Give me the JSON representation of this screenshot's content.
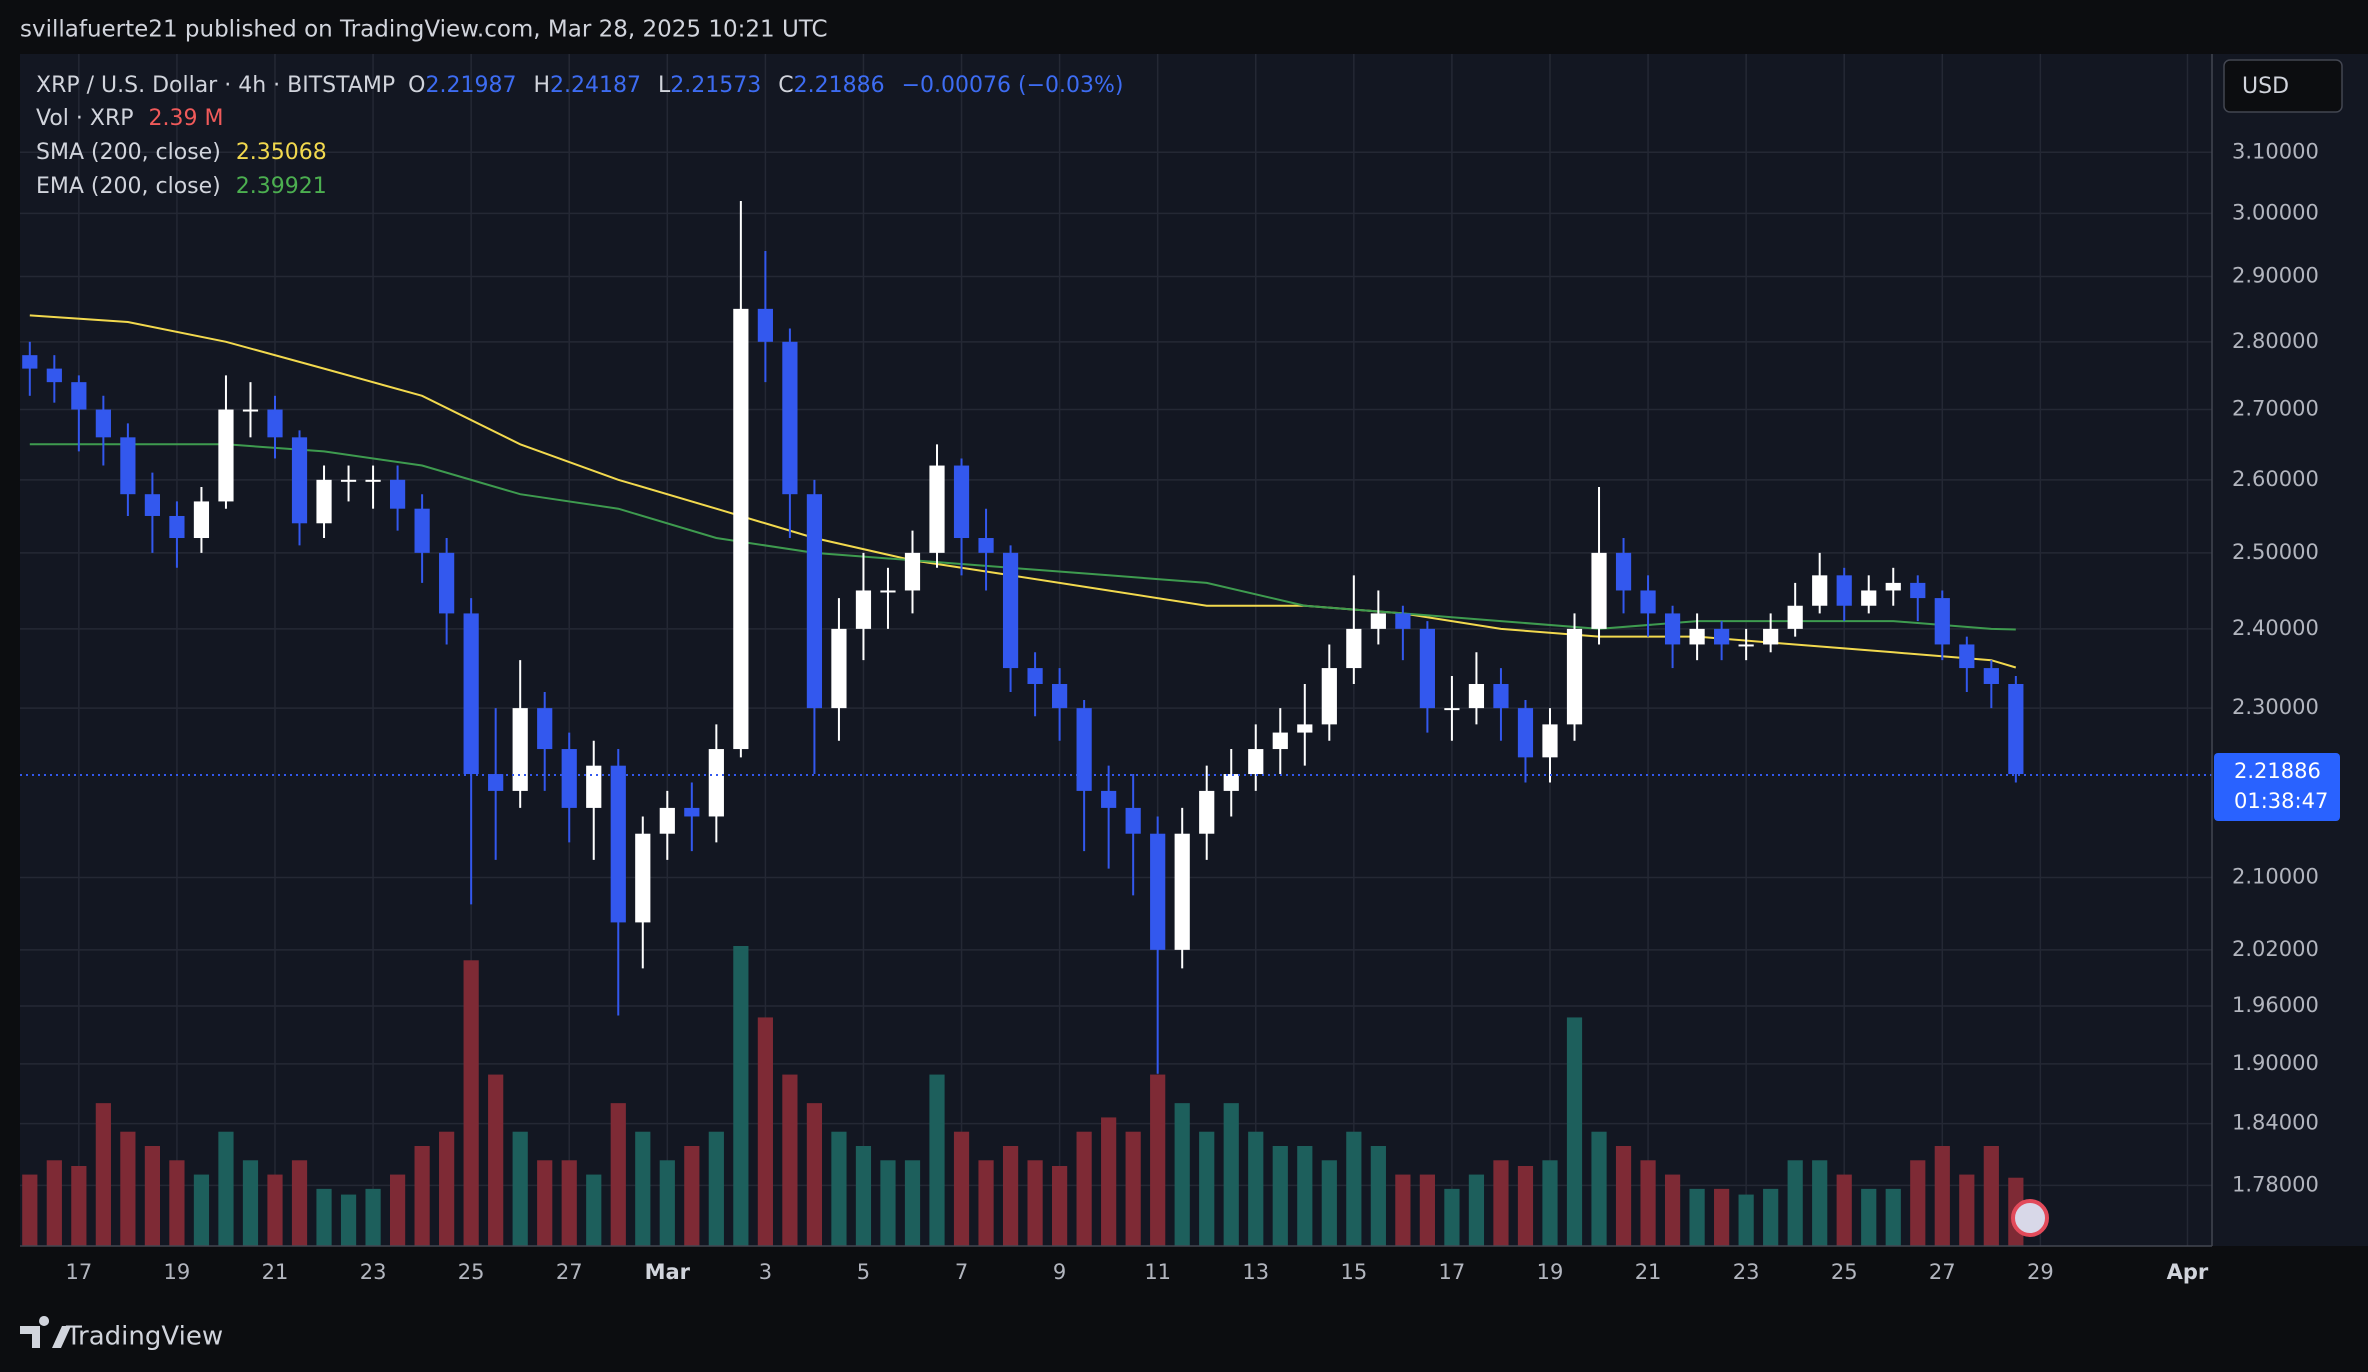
{
  "header": {
    "published": "svillafuerte21 published on TradingView.com, Mar 28, 2025 10:21 UTC",
    "logo": "TradingView"
  },
  "chart_data": {
    "type": "candlestick",
    "title": "XRP / U.S. Dollar · 4h · BITSTAMP",
    "legend": {
      "o_label": "O",
      "o": 2.21987,
      "h_label": "H",
      "h": 2.24187,
      "l_label": "L",
      "l": 2.21573,
      "c_label": "C",
      "c": 2.21886,
      "change": "−0.00076 (−0.03%)",
      "volume_label": "Vol · XRP",
      "volume": "2.39 M"
    },
    "currency": "USD",
    "countdown": "01:38:47",
    "price_line": 2.21886,
    "up_color": "#ffffff",
    "down_color": "#3358ee",
    "volume_up_color": "#1d5f5c",
    "volume_down_color": "#7e2a35",
    "log_scale": true,
    "grid": true,
    "xlim": [
      -1.2,
      43.5
    ],
    "ylim": [
      1.723,
      3.268
    ],
    "xticks": [
      {
        "value": 0,
        "label": "17"
      },
      {
        "value": 2,
        "label": "19"
      },
      {
        "value": 4,
        "label": "21"
      },
      {
        "value": 6,
        "label": "23"
      },
      {
        "value": 8,
        "label": "25"
      },
      {
        "value": 10,
        "label": "27"
      },
      {
        "value": 12,
        "label": "Mar"
      },
      {
        "value": 14,
        "label": "3"
      },
      {
        "value": 16,
        "label": "5"
      },
      {
        "value": 18,
        "label": "7"
      },
      {
        "value": 20,
        "label": "9"
      },
      {
        "value": 22,
        "label": "11"
      },
      {
        "value": 24,
        "label": "13"
      },
      {
        "value": 26,
        "label": "15"
      },
      {
        "value": 28,
        "label": "17"
      },
      {
        "value": 30,
        "label": "19"
      },
      {
        "value": 32,
        "label": "21"
      },
      {
        "value": 34,
        "label": "23"
      },
      {
        "value": 36,
        "label": "25"
      },
      {
        "value": 38,
        "label": "27"
      },
      {
        "value": 40,
        "label": "29"
      },
      {
        "value": 43,
        "label": "Apr"
      }
    ],
    "yticks": [
      {
        "value": 3.1,
        "label": "3.10000"
      },
      {
        "value": 3.0,
        "label": "3.00000"
      },
      {
        "value": 2.9,
        "label": "2.90000"
      },
      {
        "value": 2.8,
        "label": "2.80000"
      },
      {
        "value": 2.7,
        "label": "2.70000"
      },
      {
        "value": 2.6,
        "label": "2.60000"
      },
      {
        "value": 2.5,
        "label": "2.50000"
      },
      {
        "value": 2.4,
        "label": "2.40000"
      },
      {
        "value": 2.3,
        "label": "2.30000"
      },
      {
        "value": 2.1,
        "label": "2.10000"
      },
      {
        "value": 2.02,
        "label": "2.02000"
      },
      {
        "value": 1.96,
        "label": "1.96000"
      },
      {
        "value": 1.9,
        "label": "1.90000"
      },
      {
        "value": 1.84,
        "label": "1.84000"
      },
      {
        "value": 1.78,
        "label": "1.78000"
      }
    ],
    "x": [
      -1,
      -0.5,
      0,
      0.5,
      1,
      1.5,
      2,
      2.5,
      3,
      3.5,
      4,
      4.5,
      5,
      5.5,
      6,
      6.5,
      7,
      7.5,
      8,
      8.5,
      9,
      9.5,
      10,
      10.5,
      11,
      11.5,
      12,
      12.5,
      13,
      13.5,
      14,
      14.5,
      15,
      15.5,
      16,
      16.5,
      17,
      17.5,
      18,
      18.5,
      19,
      19.5,
      20,
      20.5,
      21,
      21.5,
      22,
      22.5,
      23,
      23.5,
      24,
      24.5,
      25,
      25.5,
      26,
      26.5,
      27,
      27.5,
      28,
      28.5,
      29,
      29.5,
      30,
      30.5,
      31,
      31.5,
      32,
      32.5,
      33,
      33.5,
      34,
      34.5,
      35,
      35.5,
      36,
      36.5,
      37,
      37.5,
      38,
      38.5,
      39,
      39.5
    ],
    "open": [
      2.78,
      2.76,
      2.74,
      2.7,
      2.66,
      2.58,
      2.55,
      2.52,
      2.57,
      2.7,
      2.7,
      2.66,
      2.54,
      2.6,
      2.6,
      2.6,
      2.56,
      2.5,
      2.42,
      2.22,
      2.2,
      2.3,
      2.25,
      2.18,
      2.23,
      2.05,
      2.15,
      2.18,
      2.17,
      2.25,
      2.85,
      2.8,
      2.58,
      2.3,
      2.4,
      2.45,
      2.45,
      2.5,
      2.62,
      2.52,
      2.5,
      2.35,
      2.33,
      2.3,
      2.2,
      2.18,
      2.15,
      2.02,
      2.15,
      2.2,
      2.22,
      2.25,
      2.27,
      2.28,
      2.35,
      2.4,
      2.42,
      2.4,
      2.3,
      2.3,
      2.33,
      2.3,
      2.24,
      2.28,
      2.4,
      2.5,
      2.45,
      2.42,
      2.38,
      2.4,
      2.38,
      2.38,
      2.4,
      2.43,
      2.47,
      2.43,
      2.45,
      2.46,
      2.44,
      2.38,
      2.35,
      2.33
    ],
    "high": [
      2.8,
      2.78,
      2.75,
      2.72,
      2.68,
      2.61,
      2.57,
      2.59,
      2.75,
      2.74,
      2.72,
      2.67,
      2.62,
      2.62,
      2.62,
      2.62,
      2.58,
      2.52,
      2.44,
      2.3,
      2.36,
      2.32,
      2.27,
      2.26,
      2.25,
      2.17,
      2.2,
      2.21,
      2.28,
      3.02,
      2.94,
      2.82,
      2.6,
      2.44,
      2.5,
      2.48,
      2.53,
      2.65,
      2.63,
      2.56,
      2.51,
      2.37,
      2.35,
      2.31,
      2.23,
      2.22,
      2.17,
      2.18,
      2.23,
      2.25,
      2.28,
      2.3,
      2.33,
      2.38,
      2.47,
      2.45,
      2.43,
      2.41,
      2.34,
      2.37,
      2.35,
      2.31,
      2.3,
      2.42,
      2.59,
      2.52,
      2.47,
      2.43,
      2.42,
      2.41,
      2.4,
      2.42,
      2.46,
      2.5,
      2.48,
      2.47,
      2.48,
      2.47,
      2.45,
      2.39,
      2.36,
      2.34
    ],
    "low": [
      2.72,
      2.71,
      2.64,
      2.62,
      2.55,
      2.5,
      2.48,
      2.5,
      2.56,
      2.66,
      2.63,
      2.51,
      2.52,
      2.57,
      2.56,
      2.53,
      2.46,
      2.38,
      2.07,
      2.12,
      2.18,
      2.2,
      2.14,
      2.12,
      1.95,
      2.0,
      2.12,
      2.13,
      2.14,
      2.24,
      2.74,
      2.52,
      2.22,
      2.26,
      2.36,
      2.4,
      2.42,
      2.48,
      2.47,
      2.45,
      2.32,
      2.29,
      2.26,
      2.13,
      2.11,
      2.08,
      1.89,
      2.0,
      2.12,
      2.17,
      2.2,
      2.22,
      2.23,
      2.26,
      2.33,
      2.38,
      2.36,
      2.27,
      2.26,
      2.28,
      2.26,
      2.21,
      2.21,
      2.26,
      2.38,
      2.42,
      2.39,
      2.35,
      2.36,
      2.36,
      2.36,
      2.37,
      2.39,
      2.42,
      2.41,
      2.42,
      2.43,
      2.41,
      2.36,
      2.32,
      2.3,
      2.21
    ],
    "close": [
      2.76,
      2.74,
      2.7,
      2.66,
      2.58,
      2.55,
      2.52,
      2.57,
      2.7,
      2.7,
      2.66,
      2.54,
      2.6,
      2.6,
      2.6,
      2.56,
      2.5,
      2.42,
      2.22,
      2.2,
      2.3,
      2.25,
      2.18,
      2.23,
      2.05,
      2.15,
      2.18,
      2.17,
      2.25,
      2.85,
      2.8,
      2.58,
      2.3,
      2.4,
      2.45,
      2.45,
      2.5,
      2.62,
      2.52,
      2.5,
      2.35,
      2.33,
      2.3,
      2.2,
      2.18,
      2.15,
      2.02,
      2.15,
      2.2,
      2.22,
      2.25,
      2.27,
      2.28,
      2.35,
      2.4,
      2.42,
      2.4,
      2.3,
      2.3,
      2.33,
      2.3,
      2.24,
      2.28,
      2.4,
      2.5,
      2.45,
      2.42,
      2.38,
      2.4,
      2.38,
      2.38,
      2.4,
      2.43,
      2.47,
      2.43,
      2.45,
      2.46,
      2.44,
      2.38,
      2.35,
      2.33,
      2.22
    ],
    "volume": [
      2.5,
      3,
      2.8,
      5,
      4,
      3.5,
      3,
      2.5,
      4,
      3,
      2.5,
      3,
      2,
      1.8,
      2,
      2.5,
      3.5,
      4,
      10,
      6,
      4,
      3,
      3,
      2.5,
      5,
      4,
      3,
      3.5,
      4,
      10.5,
      8,
      6,
      5,
      4,
      3.5,
      3,
      3,
      6,
      4,
      3,
      3.5,
      3,
      2.8,
      4,
      4.5,
      4,
      6,
      5,
      4,
      5,
      4,
      3.5,
      3.5,
      3,
      4,
      3.5,
      2.5,
      2.5,
      2,
      2.5,
      3,
      2.8,
      3,
      8,
      4,
      3.5,
      3,
      2.5,
      2,
      2,
      1.8,
      2,
      3,
      3,
      2.5,
      2,
      2,
      3,
      3.5,
      2.5,
      3.5,
      2.39
    ],
    "overlays": [
      {
        "name": "SMA (200, close)",
        "color": "#f2d94e",
        "last_value": 2.35068,
        "x": [
          -1,
          1,
          3,
          5,
          7,
          9,
          11,
          13,
          15,
          17,
          19,
          21,
          23,
          25,
          27,
          29,
          31,
          33,
          35,
          37,
          39,
          39.5
        ],
        "values": [
          2.84,
          2.83,
          2.8,
          2.76,
          2.72,
          2.65,
          2.6,
          2.56,
          2.52,
          2.49,
          2.47,
          2.45,
          2.43,
          2.43,
          2.42,
          2.4,
          2.39,
          2.39,
          2.38,
          2.37,
          2.36,
          2.35068
        ]
      },
      {
        "name": "EMA (200, close)",
        "color": "#3e9b4f",
        "last_value": 2.39921,
        "x": [
          -1,
          1,
          3,
          5,
          7,
          9,
          11,
          13,
          15,
          17,
          19,
          21,
          23,
          25,
          27,
          29,
          31,
          33,
          35,
          37,
          39,
          39.5
        ],
        "values": [
          2.65,
          2.65,
          2.65,
          2.64,
          2.62,
          2.58,
          2.56,
          2.52,
          2.5,
          2.49,
          2.48,
          2.47,
          2.46,
          2.43,
          2.42,
          2.41,
          2.4,
          2.41,
          2.41,
          2.41,
          2.4,
          2.39921
        ]
      }
    ]
  }
}
